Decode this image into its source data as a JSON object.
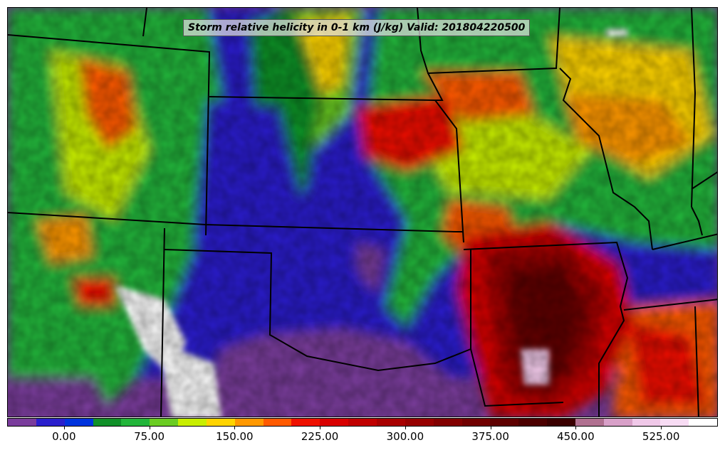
{
  "title": "Storm relative helicity in 0-1 km (J/kg) Valid: 201804220500",
  "colorbar": {
    "colors": [
      "#7a3c9c",
      "#2a1fcc",
      "#0033dd",
      "#109028",
      "#22b53a",
      "#6acc22",
      "#c8ee00",
      "#ffd400",
      "#ff9800",
      "#ff5a00",
      "#ee1100",
      "#d80000",
      "#c00000",
      "#a80000",
      "#960000",
      "#820000",
      "#700000",
      "#5e0000",
      "#4c0000",
      "#3a0000",
      "#b07090",
      "#d8a0c8",
      "#f0c8e8",
      "#f8dcf4",
      "#ffffff"
    ],
    "ticks": [
      {
        "label": "0.00",
        "frac": 0.08
      },
      {
        "label": "75.00",
        "frac": 0.2
      },
      {
        "label": "150.00",
        "frac": 0.32
      },
      {
        "label": "225.00",
        "frac": 0.44
      },
      {
        "label": "300.00",
        "frac": 0.56
      },
      {
        "label": "375.00",
        "frac": 0.68
      },
      {
        "label": "450.00",
        "frac": 0.8
      },
      {
        "label": "525.00",
        "frac": 0.92
      }
    ]
  }
}
